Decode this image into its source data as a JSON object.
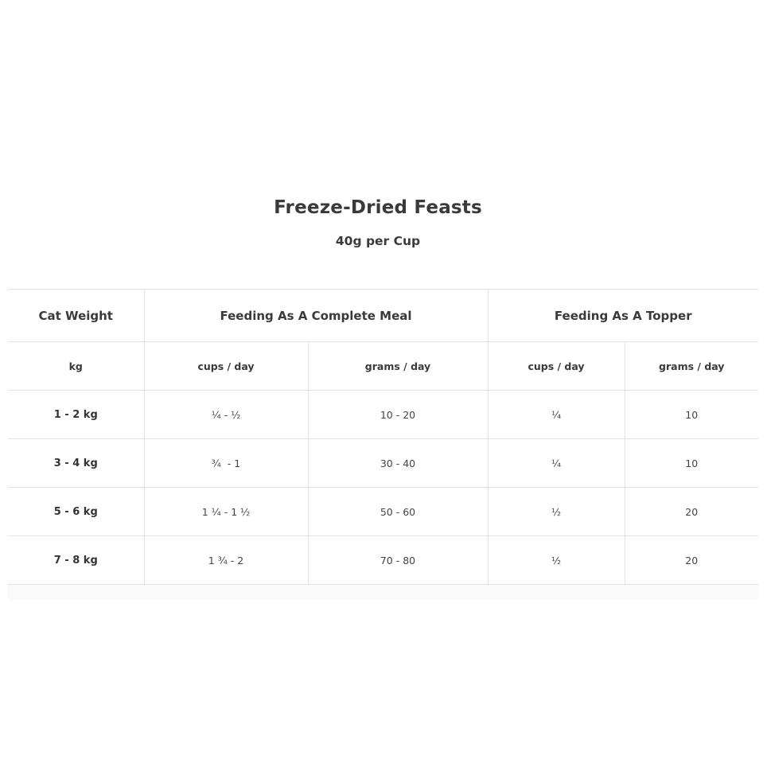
{
  "title": "Freeze-Dried Feasts",
  "subtitle": "40g per Cup",
  "table": {
    "group_headers": [
      "Cat Weight",
      "Feeding As A Complete Meal",
      "Feeding As A Topper"
    ],
    "sub_headers": [
      "kg",
      "cups / day",
      "grams / day",
      "cups / day",
      "grams / day"
    ],
    "rows": [
      [
        "1 - 2 kg",
        "¼ - ½",
        "10 - 20",
        "¼",
        "10"
      ],
      [
        "3 - 4 kg",
        "¾  - 1",
        "30 - 40",
        "¼",
        "10"
      ],
      [
        "5 - 6 kg",
        "1 ¼ - 1 ½",
        "50 - 60",
        "½",
        "20"
      ],
      [
        "7 - 8 kg",
        "1 ¾ - 2",
        "70 - 80",
        "½",
        "20"
      ]
    ]
  }
}
